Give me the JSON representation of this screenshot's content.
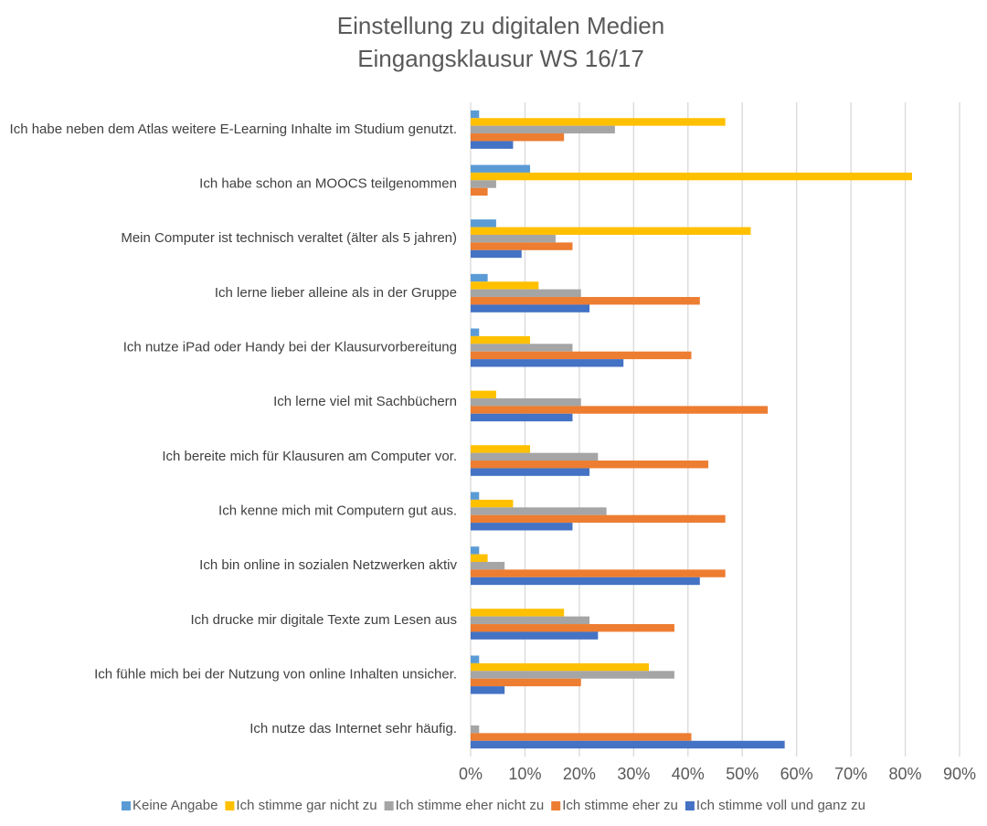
{
  "chart_data": {
    "type": "hbar",
    "title": "Einstellung zu digitalen Medien",
    "subtitle": "Eingangsklausur WS 16/17",
    "categories": [
      "Ich habe neben dem Atlas weitere E-Learning Inhalte im Studium genutzt.",
      "Ich habe schon an MOOCS teilgenommen",
      "Mein Computer ist technisch veraltet (älter als 5 jahren)",
      "Ich lerne lieber alleine als in der Gruppe",
      "Ich nutze iPad oder Handy bei der Klausurvorbereitung",
      "Ich lerne viel mit Sachbüchern",
      "Ich bereite mich für Klausuren am Computer vor.",
      "Ich kenne mich mit Computern gut aus.",
      "Ich bin online in sozialen Netzwerken aktiv",
      "Ich drucke mir digitale Texte zum Lesen aus",
      "Ich fühle mich bei der Nutzung von online Inhalten unsicher.",
      "Ich nutze das Internet sehr häufig."
    ],
    "series": [
      {
        "name": "Keine Angabe",
        "color": "#5b9bd5",
        "values": [
          1.56,
          10.94,
          4.69,
          3.13,
          1.56,
          0,
          0,
          1.56,
          1.56,
          0,
          1.56,
          0
        ]
      },
      {
        "name": "Ich stimme gar nicht zu",
        "color": "#ffc000",
        "values": [
          46.88,
          81.25,
          51.56,
          12.5,
          10.94,
          4.69,
          10.94,
          7.81,
          3.13,
          17.19,
          32.81,
          0
        ]
      },
      {
        "name": "Ich stimme eher nicht zu",
        "color": "#a5a5a5",
        "values": [
          26.56,
          4.69,
          15.63,
          20.31,
          18.75,
          20.31,
          23.44,
          25,
          6.25,
          21.88,
          37.5,
          1.56
        ]
      },
      {
        "name": "Ich stimme eher zu",
        "color": "#ed7d31",
        "values": [
          17.19,
          3.13,
          18.75,
          42.19,
          40.63,
          54.69,
          43.75,
          46.88,
          46.88,
          37.5,
          20.31,
          40.63
        ]
      },
      {
        "name": "Ich stimme voll und ganz zu",
        "color": "#4472c4",
        "values": [
          7.81,
          0,
          9.38,
          21.88,
          28.13,
          18.75,
          21.88,
          18.75,
          42.19,
          23.44,
          6.25,
          57.81
        ]
      }
    ],
    "xlim": [
      0,
      90
    ],
    "xticks": [
      {
        "value": 0,
        "label": "0%"
      },
      {
        "value": 10,
        "label": "10%"
      },
      {
        "value": 20,
        "label": "20%"
      },
      {
        "value": 30,
        "label": "30%"
      },
      {
        "value": 40,
        "label": "40%"
      },
      {
        "value": 50,
        "label": "50%"
      },
      {
        "value": 60,
        "label": "60%"
      },
      {
        "value": 70,
        "label": "70%"
      },
      {
        "value": 80,
        "label": "80%"
      },
      {
        "value": 90,
        "label": "90%"
      }
    ],
    "grid": true,
    "legend": "bottom"
  }
}
